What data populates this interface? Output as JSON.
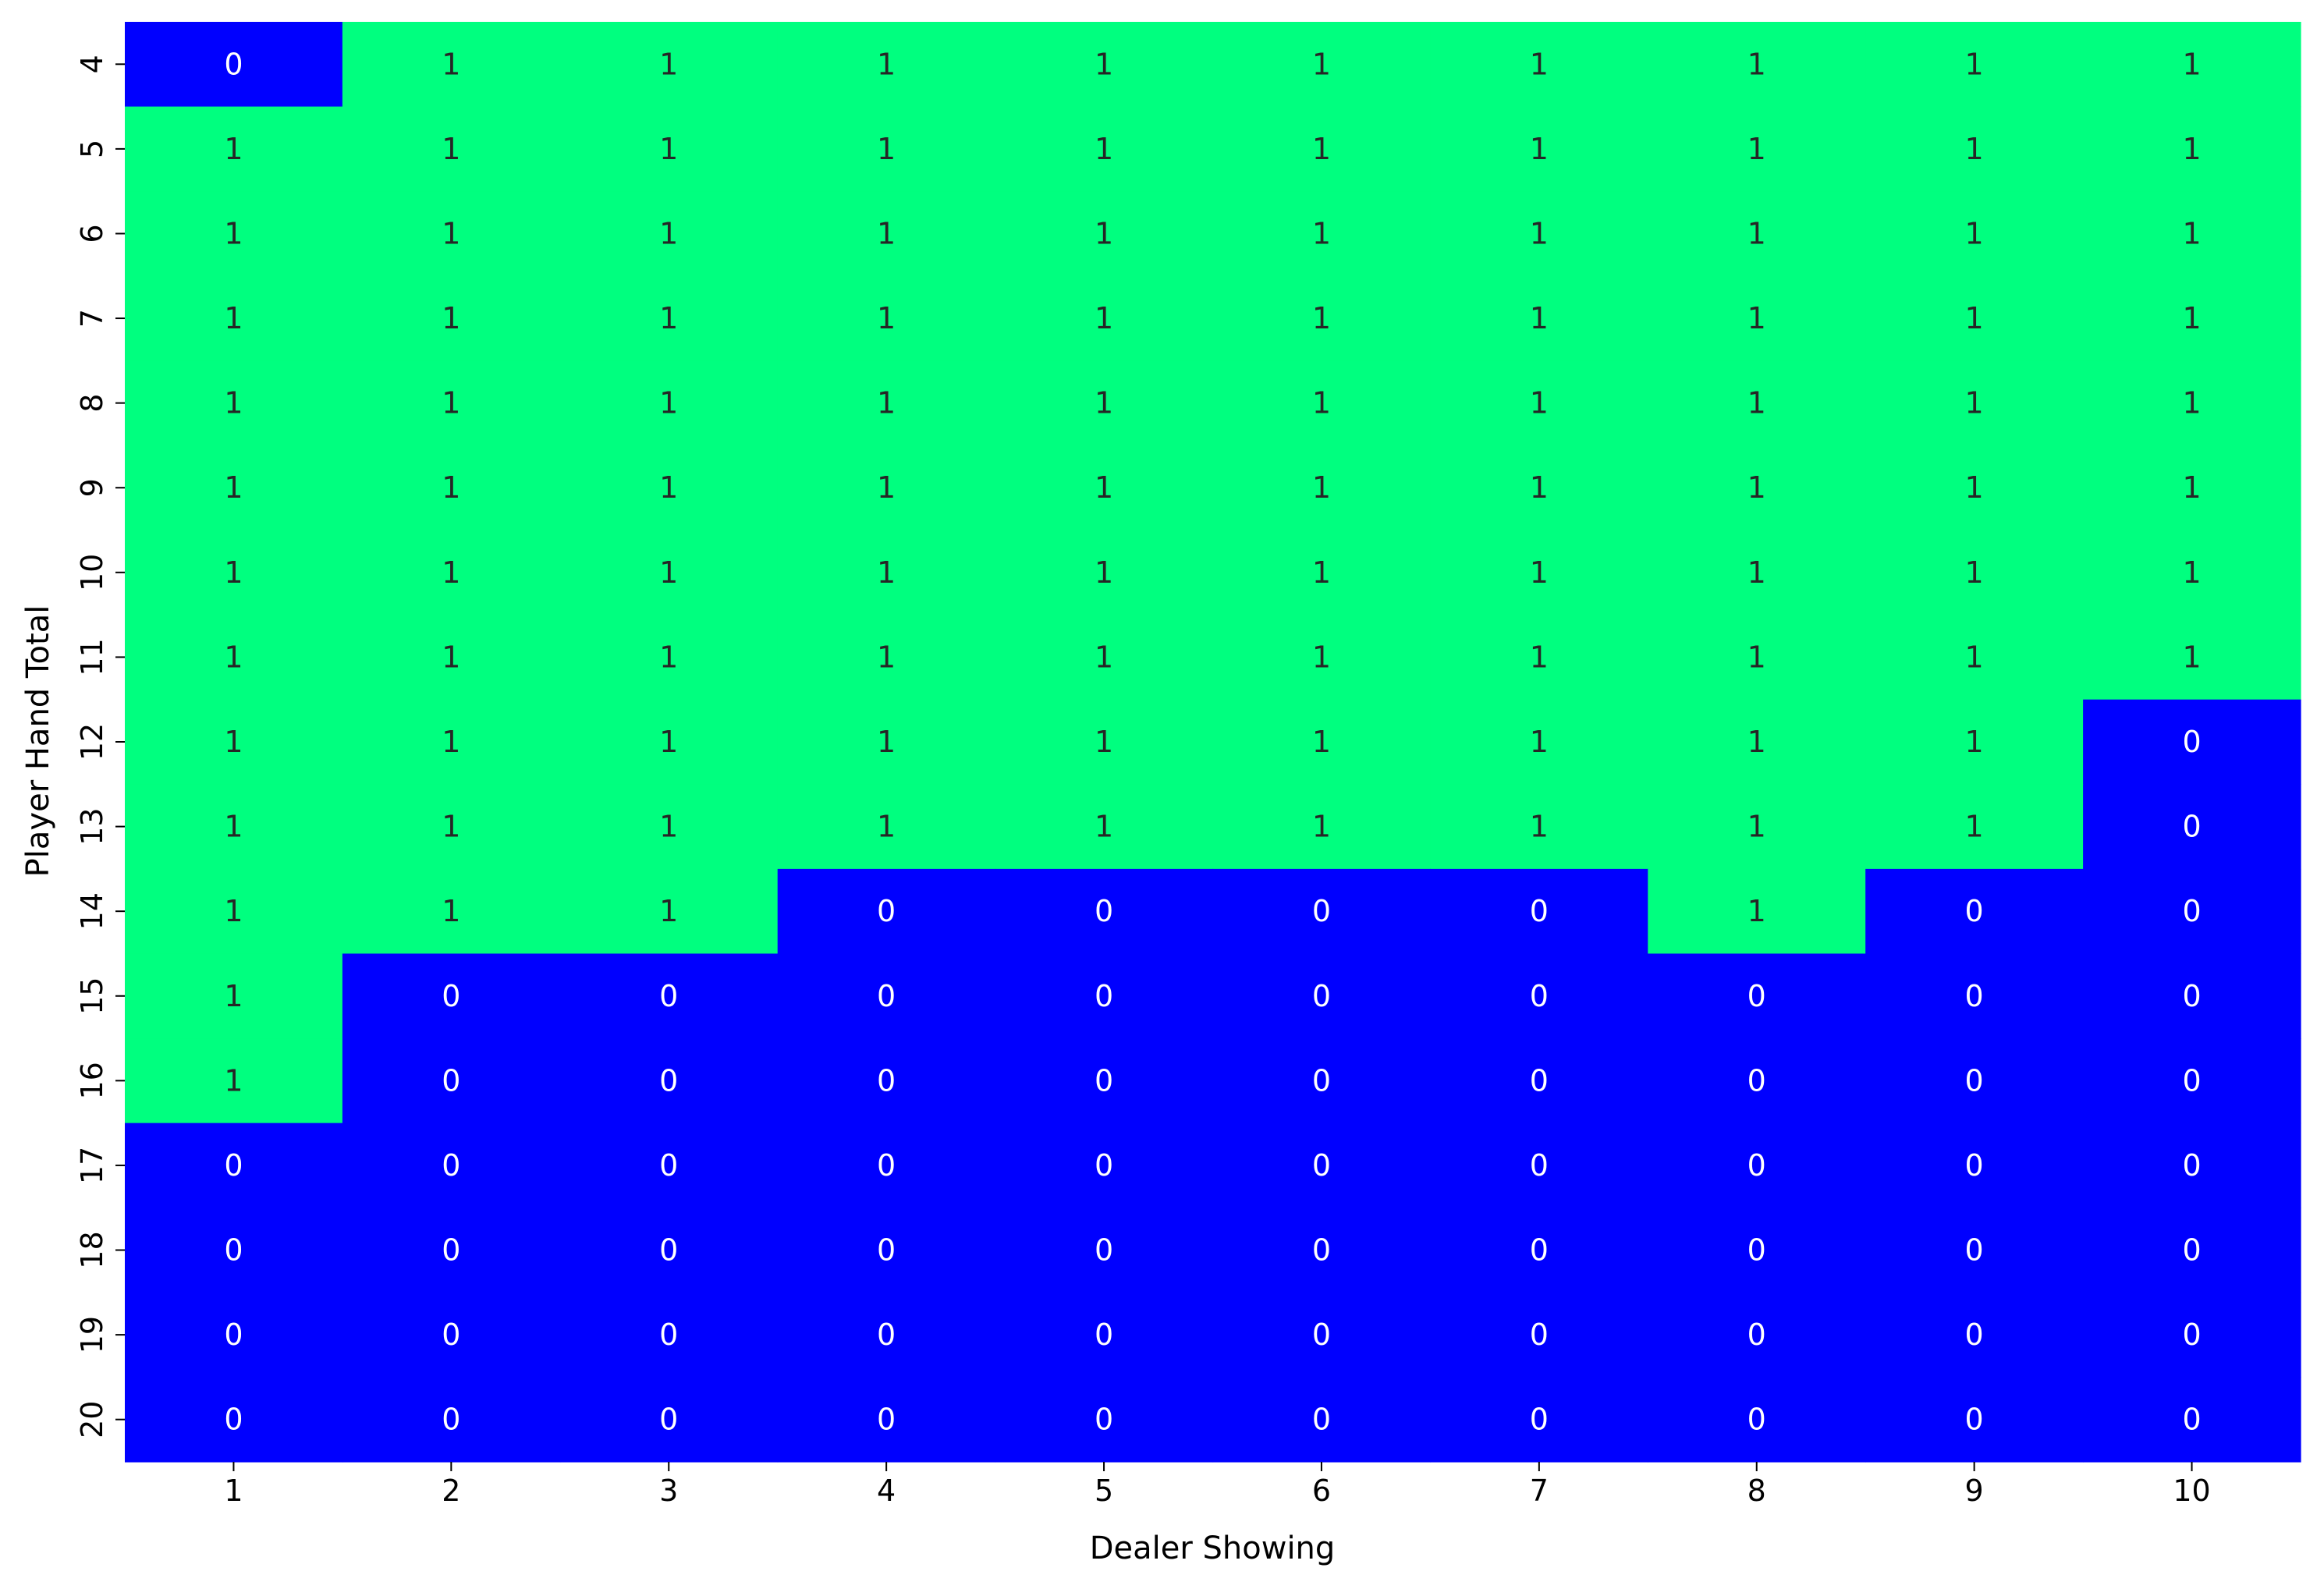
{
  "chart_data": {
    "type": "heatmap",
    "title": "",
    "xlabel": "Dealer Showing",
    "ylabel": "Player Hand Total",
    "x": [
      "1",
      "2",
      "3",
      "4",
      "5",
      "6",
      "7",
      "8",
      "9",
      "10"
    ],
    "y": [
      "4",
      "5",
      "6",
      "7",
      "8",
      "9",
      "10",
      "11",
      "12",
      "13",
      "14",
      "15",
      "16",
      "17",
      "18",
      "19",
      "20"
    ],
    "values": [
      [
        0,
        1,
        1,
        1,
        1,
        1,
        1,
        1,
        1,
        1
      ],
      [
        1,
        1,
        1,
        1,
        1,
        1,
        1,
        1,
        1,
        1
      ],
      [
        1,
        1,
        1,
        1,
        1,
        1,
        1,
        1,
        1,
        1
      ],
      [
        1,
        1,
        1,
        1,
        1,
        1,
        1,
        1,
        1,
        1
      ],
      [
        1,
        1,
        1,
        1,
        1,
        1,
        1,
        1,
        1,
        1
      ],
      [
        1,
        1,
        1,
        1,
        1,
        1,
        1,
        1,
        1,
        1
      ],
      [
        1,
        1,
        1,
        1,
        1,
        1,
        1,
        1,
        1,
        1
      ],
      [
        1,
        1,
        1,
        1,
        1,
        1,
        1,
        1,
        1,
        1
      ],
      [
        1,
        1,
        1,
        1,
        1,
        1,
        1,
        1,
        1,
        0
      ],
      [
        1,
        1,
        1,
        1,
        1,
        1,
        1,
        1,
        1,
        0
      ],
      [
        1,
        1,
        1,
        0,
        0,
        0,
        0,
        1,
        0,
        0
      ],
      [
        1,
        0,
        0,
        0,
        0,
        0,
        0,
        0,
        0,
        0
      ],
      [
        1,
        0,
        0,
        0,
        0,
        0,
        0,
        0,
        0,
        0
      ],
      [
        0,
        0,
        0,
        0,
        0,
        0,
        0,
        0,
        0,
        0
      ],
      [
        0,
        0,
        0,
        0,
        0,
        0,
        0,
        0,
        0,
        0
      ],
      [
        0,
        0,
        0,
        0,
        0,
        0,
        0,
        0,
        0,
        0
      ],
      [
        0,
        0,
        0,
        0,
        0,
        0,
        0,
        0,
        0,
        0
      ]
    ],
    "colors": {
      "0": "#0000ff",
      "1": "#00ff7f"
    },
    "label_colors": {
      "0": "#ffffff",
      "1": "#262626"
    },
    "annotated": true,
    "colorbar": false,
    "grid": false
  }
}
